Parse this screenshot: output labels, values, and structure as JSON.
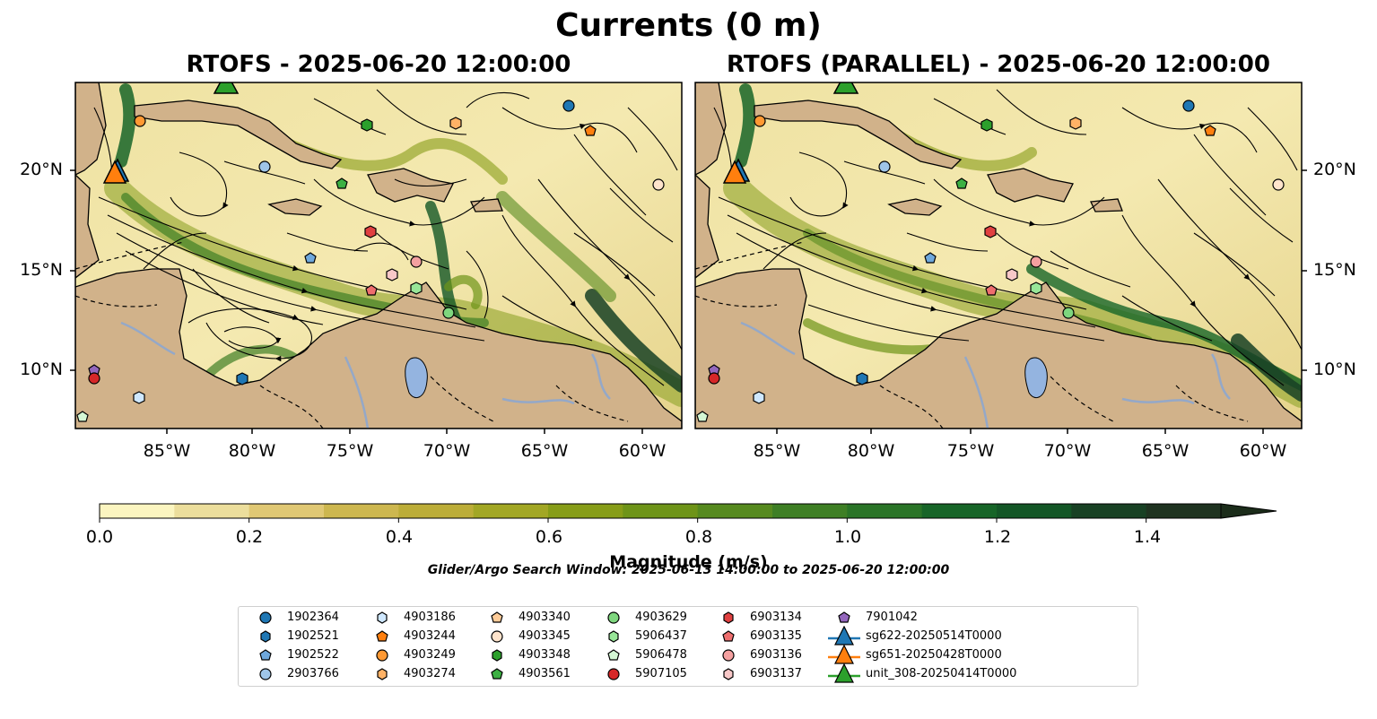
{
  "suptitle": "Currents (0 m)",
  "panels": {
    "left_title": "RTOFS - 2025-06-20 12:00:00",
    "right_title": "RTOFS (PARALLEL) - 2025-06-20 12:00:00"
  },
  "axes": {
    "x_ticks": [
      "85°W",
      "80°W",
      "75°W",
      "70°W",
      "65°W",
      "60°W"
    ],
    "y_ticks": [
      "20°N",
      "15°N",
      "10°N"
    ]
  },
  "colorbar": {
    "label": "Magnitude (m/s)",
    "ticks": [
      "0.0",
      "0.2",
      "0.4",
      "0.6",
      "0.8",
      "1.0",
      "1.2",
      "1.4"
    ],
    "range": [
      0,
      1.5
    ],
    "extend": "max",
    "colors": [
      "#fbf5c0",
      "#ecde9c",
      "#e0c874",
      "#cdb74f",
      "#bcad38",
      "#a2a725",
      "#879d18",
      "#6e9418",
      "#568a1f",
      "#3e7f25",
      "#2a7427",
      "#176528",
      "#135626",
      "#184124",
      "#1f3320",
      "#1b2c1a"
    ]
  },
  "search_window": "Glider/Argo Search Window: 2025-06-13 14:00:00 to 2025-06-20 12:00:00",
  "land_color": "#d1b28a",
  "legend": [
    {
      "label": "1902364",
      "marker": "circle",
      "color": "#1f77b4"
    },
    {
      "label": "1902521",
      "marker": "hexagon",
      "color": "#1f77b4"
    },
    {
      "label": "1902522",
      "marker": "pentagon",
      "color": "#6fa8dc"
    },
    {
      "label": "2903766",
      "marker": "circle",
      "color": "#9fc5e8"
    },
    {
      "label": "4903186",
      "marker": "hexagon",
      "color": "#cfe8ff"
    },
    {
      "label": "4903244",
      "marker": "pentagon",
      "color": "#ff7f0e"
    },
    {
      "label": "4903249",
      "marker": "circle",
      "color": "#ff9933"
    },
    {
      "label": "4903274",
      "marker": "hexagon",
      "color": "#ffb266"
    },
    {
      "label": "4903340",
      "marker": "pentagon",
      "color": "#ffcc99"
    },
    {
      "label": "4903345",
      "marker": "circle",
      "color": "#ffe4cc"
    },
    {
      "label": "4903348",
      "marker": "hexagon",
      "color": "#2ca02c"
    },
    {
      "label": "4903561",
      "marker": "pentagon",
      "color": "#3cb043"
    },
    {
      "label": "4903629",
      "marker": "circle",
      "color": "#7ed67e"
    },
    {
      "label": "5906437",
      "marker": "hexagon",
      "color": "#98e698"
    },
    {
      "label": "5906478",
      "marker": "pentagon",
      "color": "#d4f7d4"
    },
    {
      "label": "5907105",
      "marker": "circle",
      "color": "#d62728"
    },
    {
      "label": "6903134",
      "marker": "hexagon",
      "color": "#e04040"
    },
    {
      "label": "6903135",
      "marker": "pentagon",
      "color": "#ee6e6e"
    },
    {
      "label": "6903136",
      "marker": "circle",
      "color": "#f4a0a0"
    },
    {
      "label": "6903137",
      "marker": "hexagon",
      "color": "#f8c8c8"
    },
    {
      "label": "7901042",
      "marker": "pentagon",
      "color": "#9467bd"
    },
    {
      "label": "sg622-20250514T0000",
      "marker": "triangle",
      "color": "#1f77b4"
    },
    {
      "label": "sg651-20250428T0000",
      "marker": "triangle",
      "color": "#ff7f0e"
    },
    {
      "label": "unit_308-20250414T0000",
      "marker": "triangle",
      "color": "#2ca02c"
    }
  ]
}
